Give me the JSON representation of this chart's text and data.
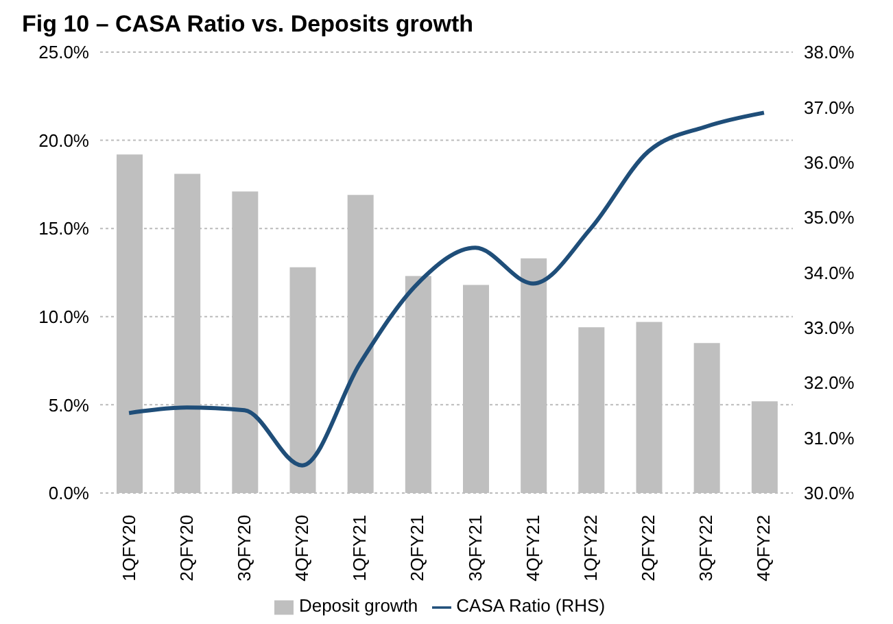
{
  "chart_data": {
    "type": "bar",
    "title": "Fig 10 – CASA Ratio vs. Deposits growth",
    "categories": [
      "1QFY20",
      "2QFY20",
      "3QFY20",
      "4QFY20",
      "1QFY21",
      "2QFY21",
      "3QFY21",
      "4QFY21",
      "1QFY22",
      "2QFY22",
      "3QFY22",
      "4QFY22"
    ],
    "series": [
      {
        "name": "Deposit growth",
        "color": "#bfbfbf",
        "values": [
          19.2,
          18.1,
          17.1,
          12.8,
          16.9,
          12.3,
          11.8,
          13.3,
          9.4,
          9.7,
          8.5,
          5.2
        ]
      },
      {
        "name": "CASA Ratio (RHS)",
        "type": "line",
        "axis": "y2",
        "color": "#1f4e79",
        "values": [
          31.45,
          31.55,
          31.5,
          30.5,
          32.35,
          33.8,
          34.45,
          33.8,
          34.8,
          36.2,
          36.65,
          36.9
        ]
      }
    ],
    "ylim": [
      0,
      25
    ],
    "yticks": [
      {
        "value": 0,
        "label": "0.0%"
      },
      {
        "value": 5,
        "label": "5.0%"
      },
      {
        "value": 10,
        "label": "10.0%"
      },
      {
        "value": 15,
        "label": "15.0%"
      },
      {
        "value": 20,
        "label": "20.0%"
      },
      {
        "value": 25,
        "label": "25.0%"
      }
    ],
    "y2lim": [
      30,
      38
    ],
    "y2ticks": [
      {
        "value": 30,
        "label": "30.0%"
      },
      {
        "value": 31,
        "label": "31.0%"
      },
      {
        "value": 32,
        "label": "32.0%"
      },
      {
        "value": 33,
        "label": "33.0%"
      },
      {
        "value": 34,
        "label": "34.0%"
      },
      {
        "value": 35,
        "label": "35.0%"
      },
      {
        "value": 36,
        "label": "36.0%"
      },
      {
        "value": 37,
        "label": "37.0%"
      },
      {
        "value": 38,
        "label": "38.0%"
      }
    ],
    "grid": "y",
    "legend": "bottom",
    "marker": "none",
    "line_style": "solid"
  }
}
